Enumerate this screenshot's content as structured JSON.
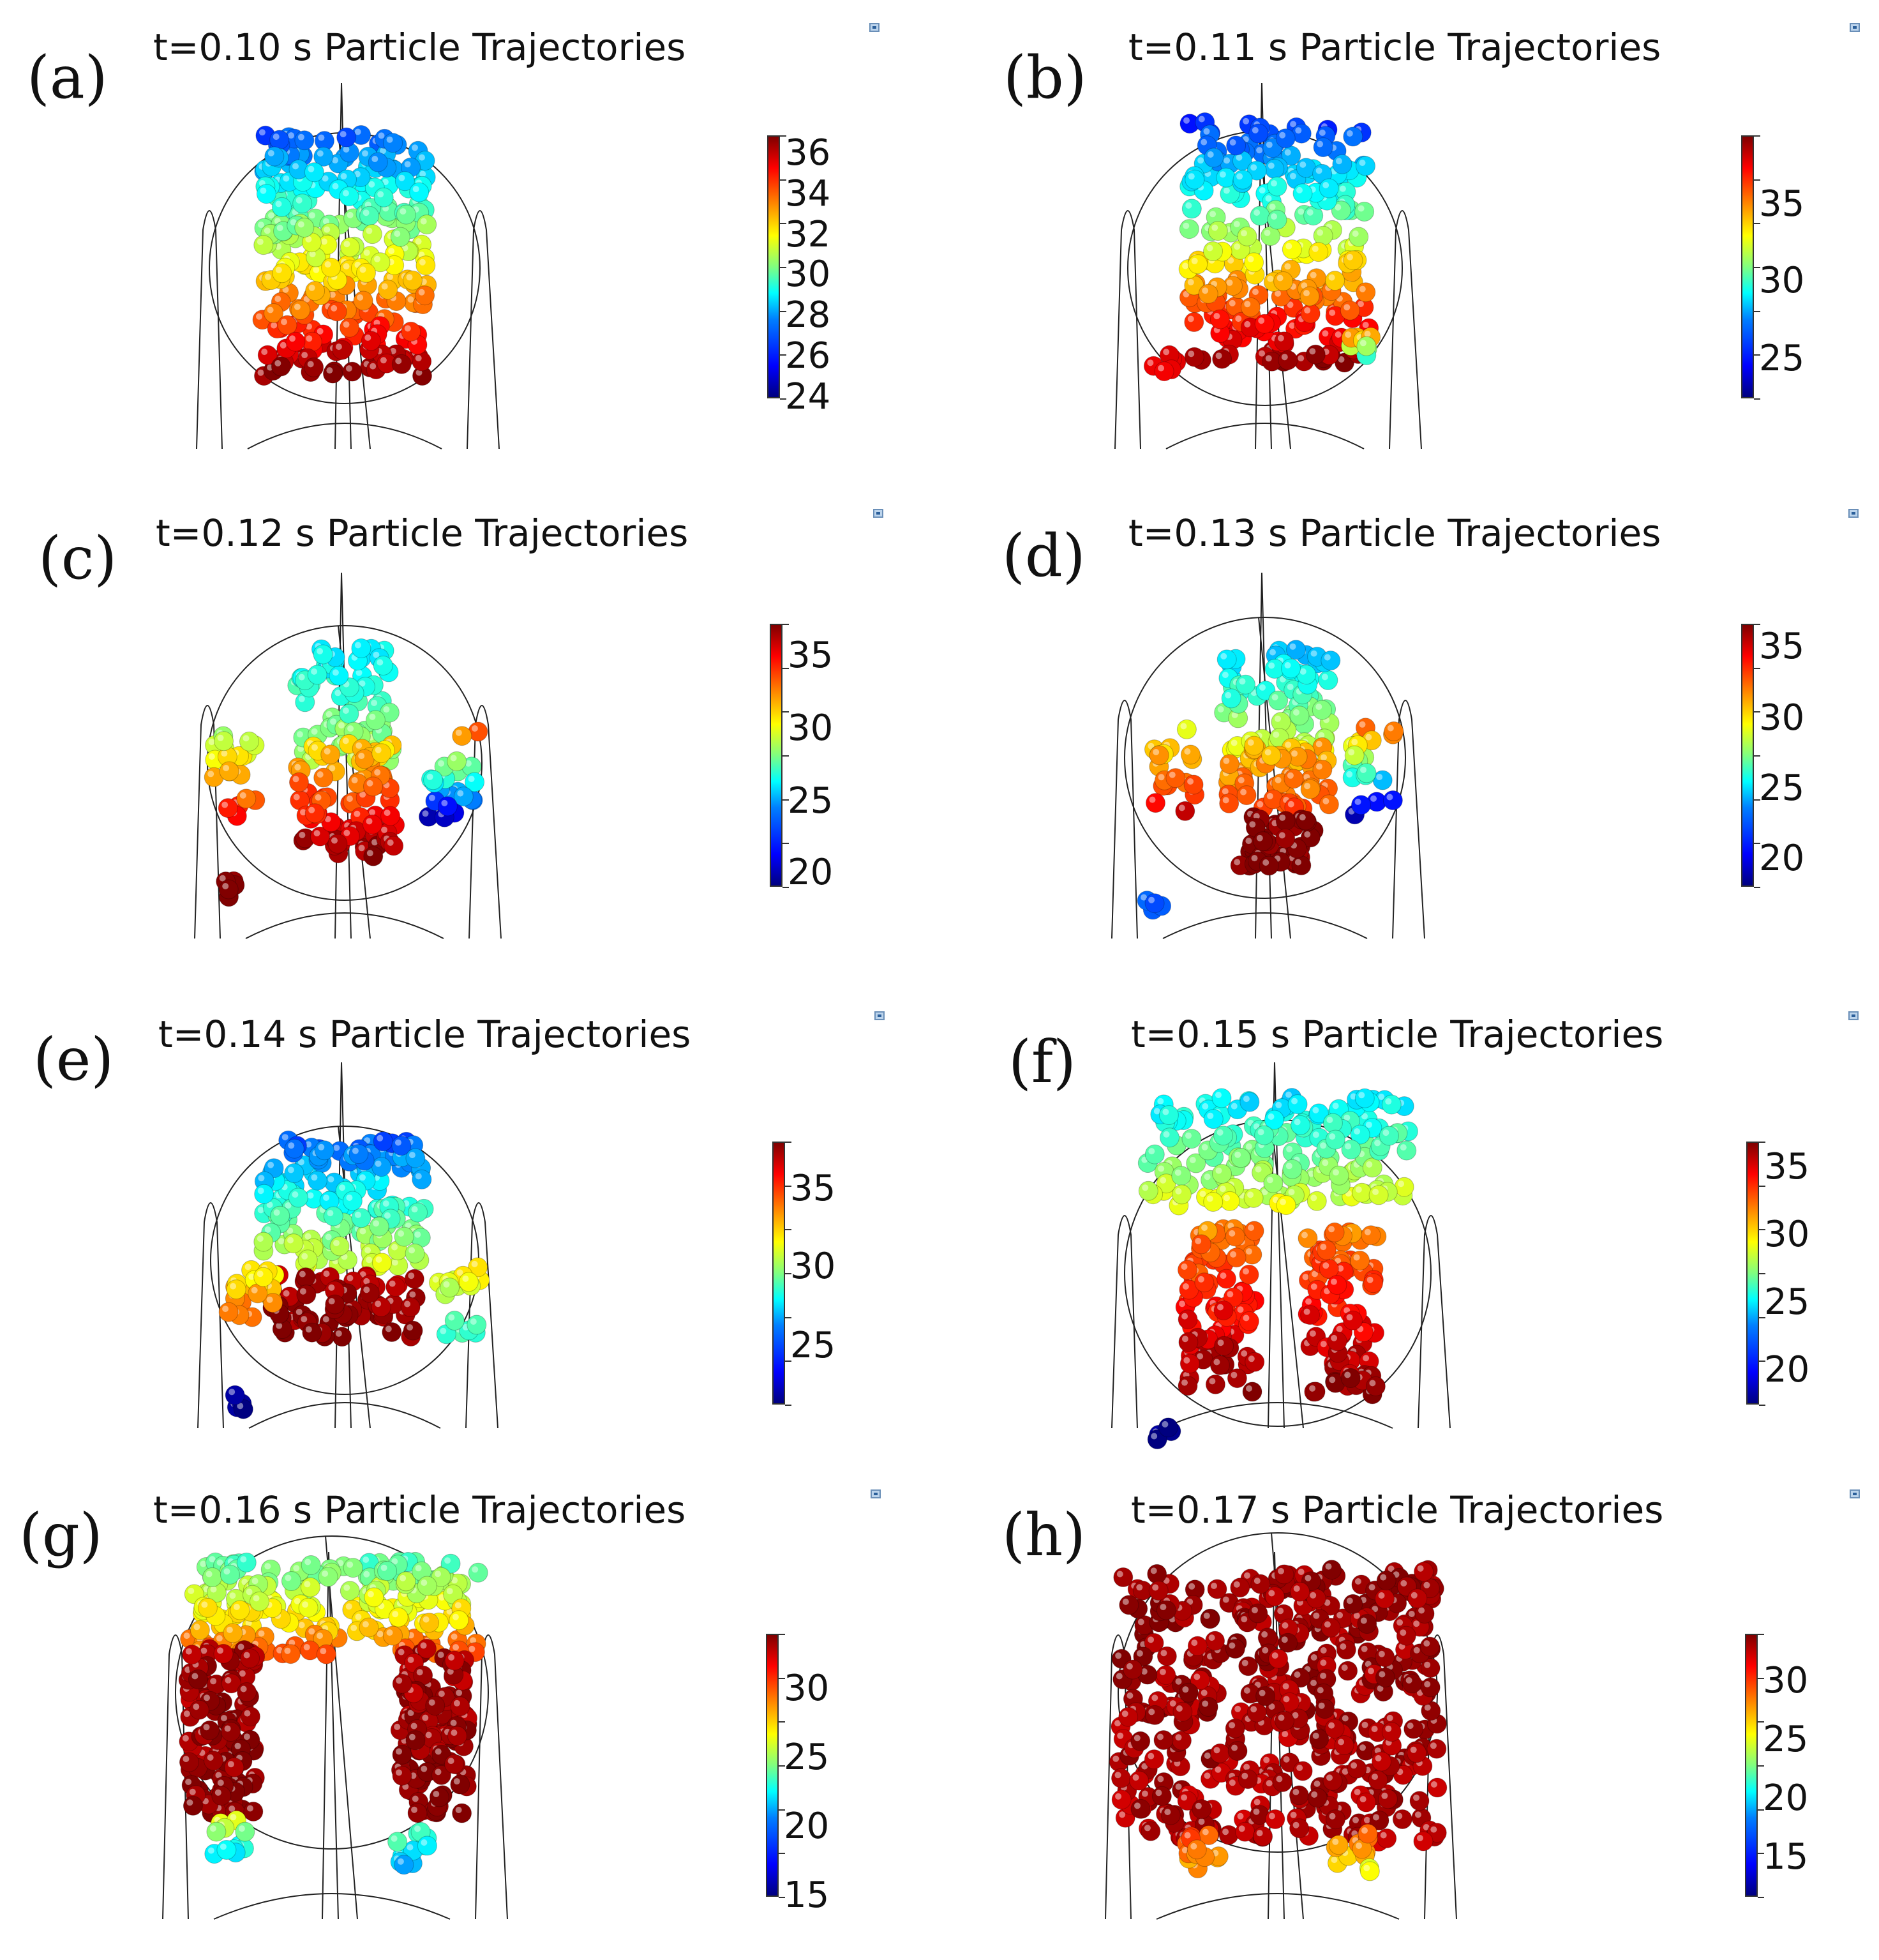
{
  "panels": [
    {
      "letter": "(a)",
      "title": "t=0.10 s Particle Trajectories",
      "ticks": [
        "36",
        "34",
        "32",
        "30",
        "28",
        "26",
        "24"
      ]
    },
    {
      "letter": "(b)",
      "title": "t=0.11 s Particle Trajectories",
      "ticks": [
        "35",
        "30",
        "25"
      ]
    },
    {
      "letter": "(c)",
      "title": "t=0.12 s Particle Trajectories",
      "ticks": [
        "35",
        "30",
        "25",
        "20"
      ]
    },
    {
      "letter": "(d)",
      "title": "t=0.13 s Particle Trajectories",
      "ticks": [
        "35",
        "30",
        "25",
        "20"
      ]
    },
    {
      "letter": "(e)",
      "title": "t=0.14 s Particle Trajectories",
      "ticks": [
        "35",
        "30",
        "25"
      ]
    },
    {
      "letter": "(f)",
      "title": "t=0.15 s Particle Trajectories",
      "ticks": [
        "35",
        "30",
        "25",
        "20"
      ]
    },
    {
      "letter": "(g)",
      "title": "t=0.16 s Particle Trajectories",
      "ticks": [
        "30",
        "25",
        "20",
        "15"
      ]
    },
    {
      "letter": "(h)",
      "title": "t=0.17 s Particle Trajectories",
      "ticks": [
        "30",
        "25",
        "20",
        "15"
      ]
    }
  ]
}
